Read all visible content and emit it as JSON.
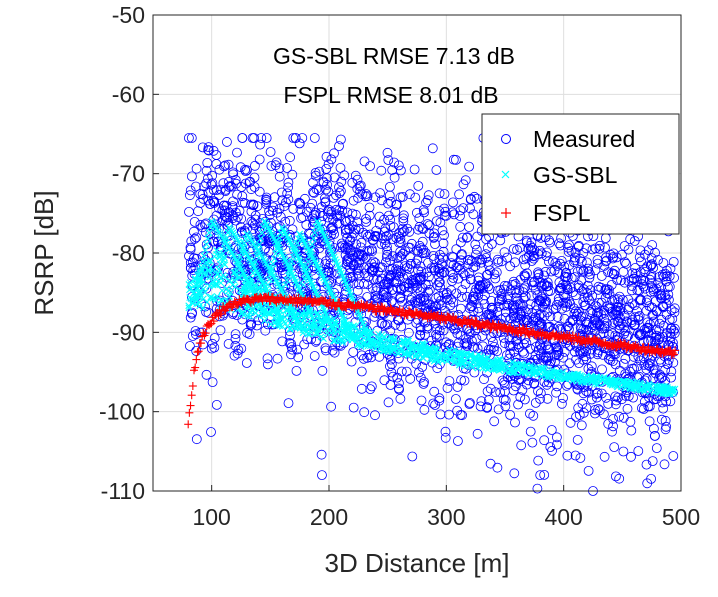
{
  "chart_data": {
    "type": "scatter",
    "xlabel": "3D Distance [m]",
    "ylabel": "RSRP [dB]",
    "xlim": [
      50,
      500
    ],
    "ylim": [
      -110,
      -50
    ],
    "xticks": [
      100,
      200,
      300,
      400,
      500
    ],
    "yticks": [
      -50,
      -60,
      -70,
      -80,
      -90,
      -100,
      -110
    ],
    "xtick_labels": [
      "100",
      "200",
      "300",
      "400",
      "500"
    ],
    "ytick_labels": [
      "-50",
      "-60",
      "-70",
      "-80",
      "-90",
      "-100",
      "-110"
    ],
    "grid": true,
    "annotations": [
      "GS-SBL RMSE 7.13 dB",
      "FSPL RMSE 8.01 dB"
    ],
    "legend": {
      "position": "top-right",
      "entries": [
        {
          "name": "Measured",
          "marker": "o",
          "color": "#0000ff"
        },
        {
          "name": "GS-SBL",
          "marker": "x",
          "color": "#00ffff"
        },
        {
          "name": "FSPL",
          "marker": "+",
          "color": "#ff0000"
        }
      ]
    },
    "series": [
      {
        "name": "Measured",
        "marker": "o",
        "color": "#0000ff",
        "x_range": [
          80,
          495
        ],
        "trend": {
          "x": [
            80,
            150,
            250,
            350,
            450,
            495
          ],
          "y": [
            -79,
            -80,
            -84,
            -87,
            -90,
            -91
          ]
        },
        "spread_db": 7,
        "extremes": [
          {
            "x": 113,
            "y": -66
          },
          {
            "x": 97,
            "y": -67
          },
          {
            "x": 194,
            "y": -108
          },
          {
            "x": 380,
            "y": -108
          },
          {
            "x": 425,
            "y": -110
          }
        ]
      },
      {
        "name": "GS-SBL",
        "marker": "x",
        "color": "#00ffff",
        "x": [
          80,
          90,
          100,
          110,
          120,
          140,
          160,
          180,
          200,
          250,
          300,
          350,
          400,
          450,
          495
        ],
        "y": [
          -84,
          -82,
          -80,
          -79,
          -82,
          -84,
          -86,
          -87,
          -88,
          -90.5,
          -92,
          -93.5,
          -95,
          -96,
          -97
        ],
        "upper_envelope": {
          "x": [
            110,
            120,
            140,
            160,
            180,
            200,
            250,
            300
          ],
          "y": [
            -77,
            -76,
            -76,
            -76,
            -75,
            -74,
            -85,
            -88
          ]
        },
        "lower_envelope": {
          "x": [
            110,
            150,
            200,
            250,
            300,
            350,
            400,
            450,
            495
          ],
          "y": [
            -87,
            -89,
            -91,
            -92.5,
            -94,
            -95,
            -96,
            -97,
            -98
          ]
        }
      },
      {
        "name": "FSPL",
        "marker": "+",
        "color": "#ff0000",
        "x": [
          80,
          82,
          85,
          88,
          92,
          96,
          100,
          105,
          110,
          120,
          130,
          140,
          150,
          175,
          200,
          250,
          300,
          350,
          400,
          450,
          495
        ],
        "y": [
          -101.5,
          -99,
          -95,
          -92.5,
          -90.5,
          -89.5,
          -88.5,
          -87.7,
          -87,
          -86.3,
          -86,
          -85.8,
          -85.8,
          -86,
          -86.3,
          -87.2,
          -88.3,
          -89.5,
          -90.6,
          -91.7,
          -92.6
        ]
      }
    ]
  }
}
